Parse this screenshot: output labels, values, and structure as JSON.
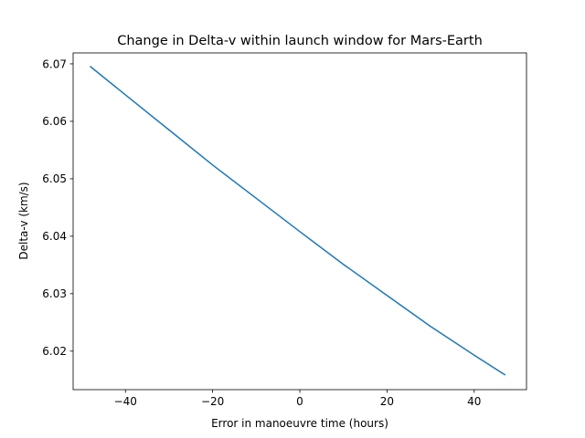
{
  "chart_data": {
    "type": "line",
    "title": "Change in Delta-v within launch window for Mars-Earth",
    "xlabel": "Error in manoeuvre time (hours)",
    "ylabel": "Delta-v (km/s)",
    "xlim": [
      -52,
      52
    ],
    "ylim": [
      6.0133,
      6.0719
    ],
    "xticks": [
      -40,
      -20,
      0,
      20,
      40
    ],
    "xtick_labels": [
      "−40",
      "−20",
      "0",
      "20",
      "40"
    ],
    "yticks": [
      6.02,
      6.03,
      6.04,
      6.05,
      6.06,
      6.07
    ],
    "ytick_labels": [
      "6.02",
      "6.03",
      "6.04",
      "6.05",
      "6.06",
      "6.07"
    ],
    "grid": false,
    "legend": "none",
    "series": [
      {
        "color": "#1f77b4",
        "x": [
          -48,
          -40,
          -30,
          -20,
          -10,
          0,
          10,
          20,
          30,
          40,
          47
        ],
        "y": [
          6.0695,
          6.0646,
          6.0585,
          6.0524,
          6.0466,
          6.0408,
          6.0351,
          6.0297,
          6.0243,
          6.0193,
          6.0159
        ]
      }
    ]
  }
}
